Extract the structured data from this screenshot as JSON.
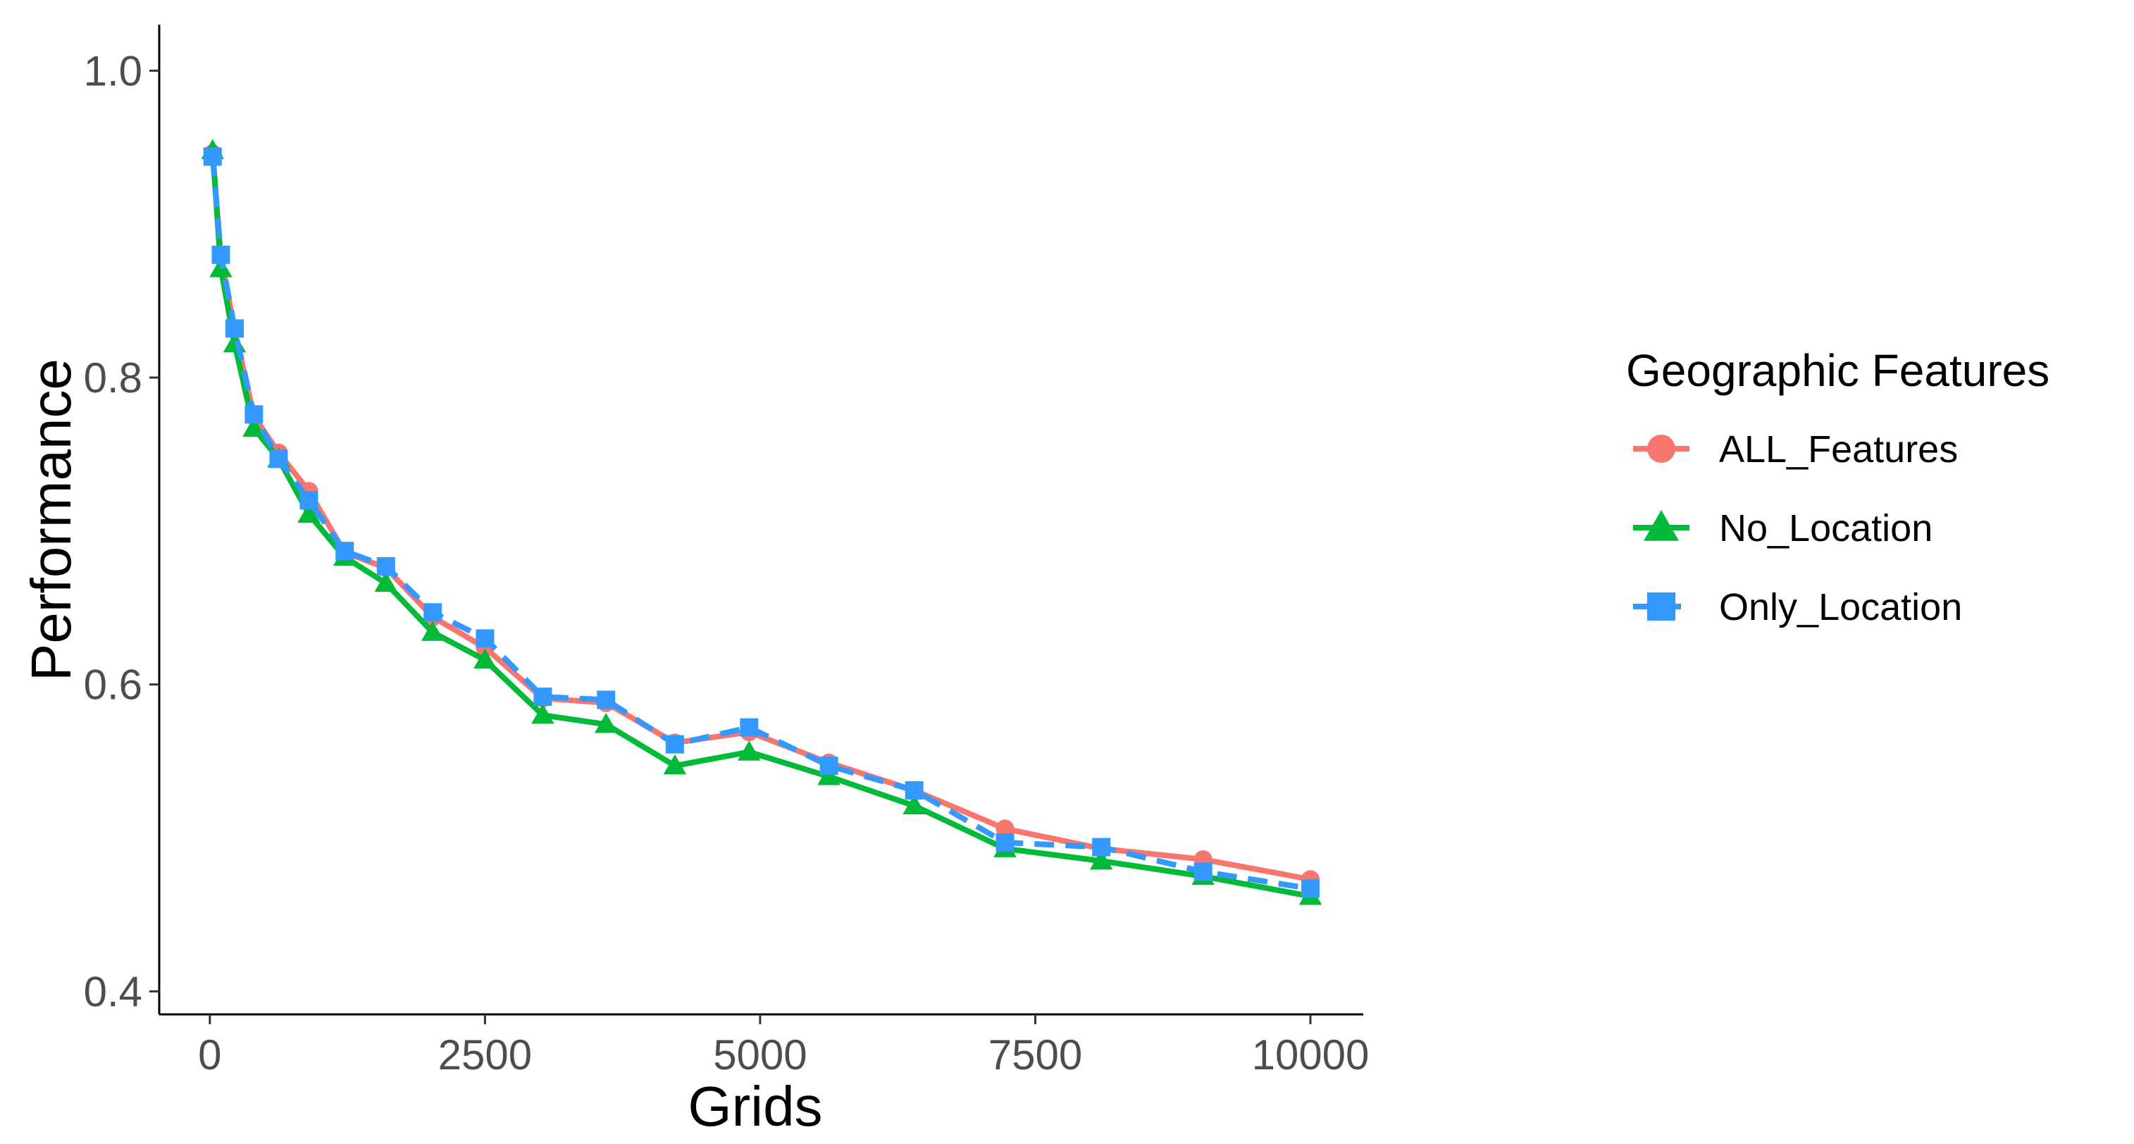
{
  "chart_data": {
    "type": "line",
    "xlabel": "Grids",
    "ylabel": "Performance",
    "xlim": [
      -460,
      10480
    ],
    "ylim": [
      0.385,
      1.03
    ],
    "x_ticks": [
      0,
      2500,
      5000,
      7500,
      10000
    ],
    "x_tick_labels": [
      "0",
      "2500",
      "5000",
      "7500",
      "10000"
    ],
    "y_ticks": [
      0.4,
      0.6,
      0.8,
      1.0
    ],
    "y_tick_labels": [
      "0.4",
      "0.6",
      "0.8",
      "1.0"
    ],
    "grid": false,
    "legend": {
      "title": "Geographic Features",
      "position": "right"
    },
    "x": [
      25,
      100,
      225,
      400,
      625,
      900,
      1225,
      1600,
      2025,
      2500,
      3025,
      3600,
      4225,
      4900,
      5625,
      6400,
      7225,
      8100,
      9025,
      10000
    ],
    "series": [
      {
        "name": "ALL_Features",
        "color": "#F8766D",
        "marker": "circle",
        "dash": "solid",
        "values": [
          0.946,
          0.879,
          0.831,
          0.775,
          0.751,
          0.726,
          0.686,
          0.676,
          0.644,
          0.624,
          0.591,
          0.588,
          0.562,
          0.569,
          0.549,
          0.531,
          0.506,
          0.493,
          0.486,
          0.473
        ]
      },
      {
        "name": "No_Location",
        "color": "#00BA38",
        "marker": "triangle",
        "dash": "solid",
        "values": [
          0.948,
          0.871,
          0.822,
          0.767,
          0.747,
          0.711,
          0.683,
          0.666,
          0.634,
          0.616,
          0.58,
          0.574,
          0.547,
          0.556,
          0.54,
          0.521,
          0.493,
          0.485,
          0.475,
          0.462
        ]
      },
      {
        "name": "Only_Location",
        "color": "#3399FF",
        "marker": "square",
        "dash": "dashed",
        "values": [
          0.944,
          0.88,
          0.832,
          0.776,
          0.747,
          0.72,
          0.687,
          0.677,
          0.647,
          0.63,
          0.592,
          0.59,
          0.561,
          0.572,
          0.547,
          0.531,
          0.497,
          0.494,
          0.478,
          0.467
        ]
      }
    ]
  }
}
